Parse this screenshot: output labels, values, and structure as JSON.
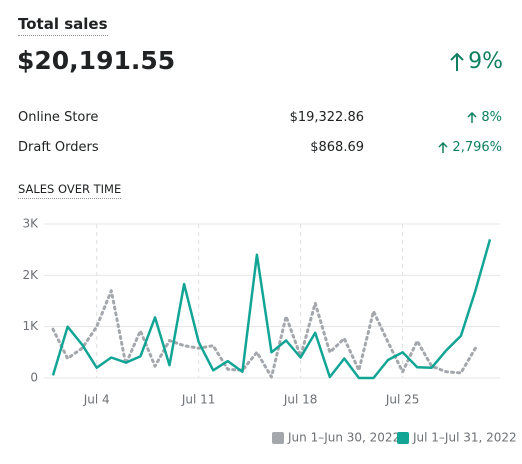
{
  "header": {
    "title": "Total sales",
    "total": "$20,191.55",
    "change": "9%"
  },
  "breakdown": [
    {
      "label": "Online Store",
      "amount": "$19,322.86",
      "change": "8%"
    },
    {
      "label": "Draft Orders",
      "amount": "$868.69",
      "change": "2,796%"
    }
  ],
  "chart_data": {
    "type": "line",
    "title": "SALES OVER TIME",
    "categories": [
      null,
      null,
      null,
      "Jul 4",
      null,
      null,
      null,
      null,
      null,
      null,
      "Jul 11",
      null,
      null,
      null,
      null,
      null,
      null,
      "Jul 18",
      null,
      null,
      null,
      null,
      null,
      null,
      "Jul 25",
      null,
      null,
      null,
      null,
      null,
      null
    ],
    "series": [
      {
        "name": "Jun 1–Jun 30, 2022",
        "color": "#a4a8ad",
        "style": "dotted",
        "values": [
          950,
          380,
          580,
          1000,
          1700,
          270,
          920,
          230,
          730,
          630,
          580,
          630,
          170,
          150,
          500,
          20,
          1200,
          420,
          1460,
          500,
          770,
          150,
          1300,
          700,
          120,
          720,
          230,
          120,
          100,
          580,
          null
        ]
      },
      {
        "name": "Jul 1–Jul 31, 2022",
        "color": "#12a596",
        "style": "solid",
        "values": [
          50,
          1000,
          650,
          200,
          400,
          300,
          420,
          1180,
          250,
          1830,
          700,
          150,
          330,
          120,
          2400,
          500,
          730,
          400,
          880,
          20,
          380,
          0,
          0,
          350,
          500,
          210,
          200,
          540,
          820,
          1700,
          2700
        ]
      }
    ],
    "ylim": [
      0,
      3000
    ],
    "yticks": [
      0,
      {
        "value": 1000,
        "label": "1K"
      },
      {
        "value": 2000,
        "label": "2K"
      },
      {
        "value": 3000,
        "label": "3K"
      }
    ],
    "grid": true,
    "legend": "bottom-right"
  }
}
